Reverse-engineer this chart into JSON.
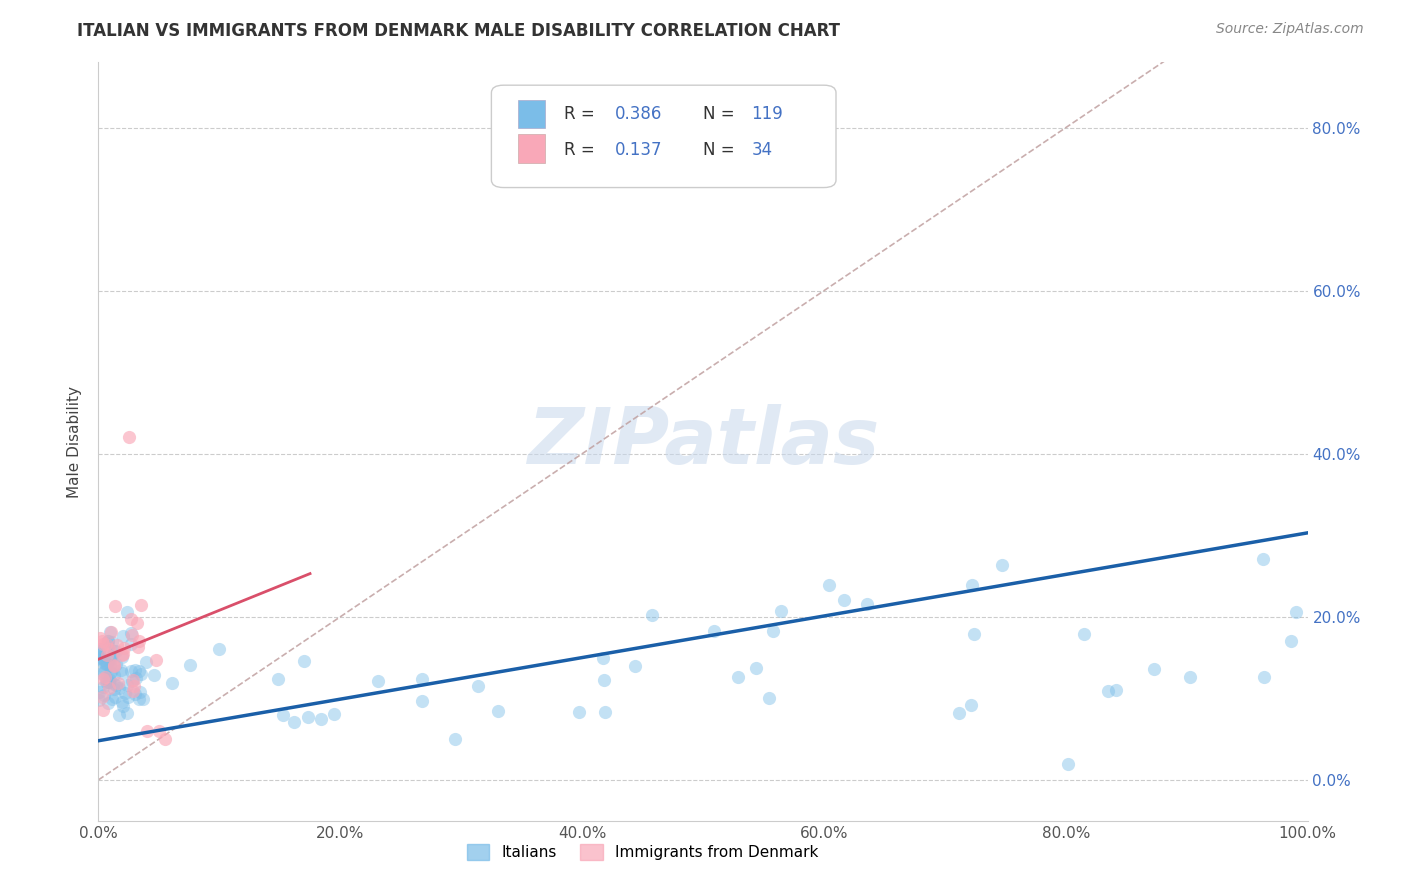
{
  "title": "ITALIAN VS IMMIGRANTS FROM DENMARK MALE DISABILITY CORRELATION CHART",
  "source": "Source: ZipAtlas.com",
  "ylabel": "Male Disability",
  "xlim": [
    0.0,
    1.0
  ],
  "ylim": [
    -0.05,
    0.88
  ],
  "x_ticks": [
    0.0,
    0.2,
    0.4,
    0.6,
    0.8,
    1.0
  ],
  "x_tick_labels": [
    "0.0%",
    "20.0%",
    "40.0%",
    "60.0%",
    "80.0%",
    "100.0%"
  ],
  "y_ticks": [
    0.0,
    0.2,
    0.4,
    0.6,
    0.8
  ],
  "y_tick_labels": [
    "0.0%",
    "20.0%",
    "40.0%",
    "60.0%",
    "80.0%"
  ],
  "watermark": "ZIPatlas",
  "legend_label1": "Italians",
  "legend_label2": "Immigrants from Denmark",
  "color_blue": "#7bbde8",
  "color_blue_line": "#1a5fa8",
  "color_pink": "#f9a8b8",
  "color_pink_line": "#d94f6a",
  "color_dashed": "#c0a0a0",
  "title_fontsize": 12,
  "source_fontsize": 10,
  "tick_fontsize": 11,
  "ylabel_fontsize": 11
}
